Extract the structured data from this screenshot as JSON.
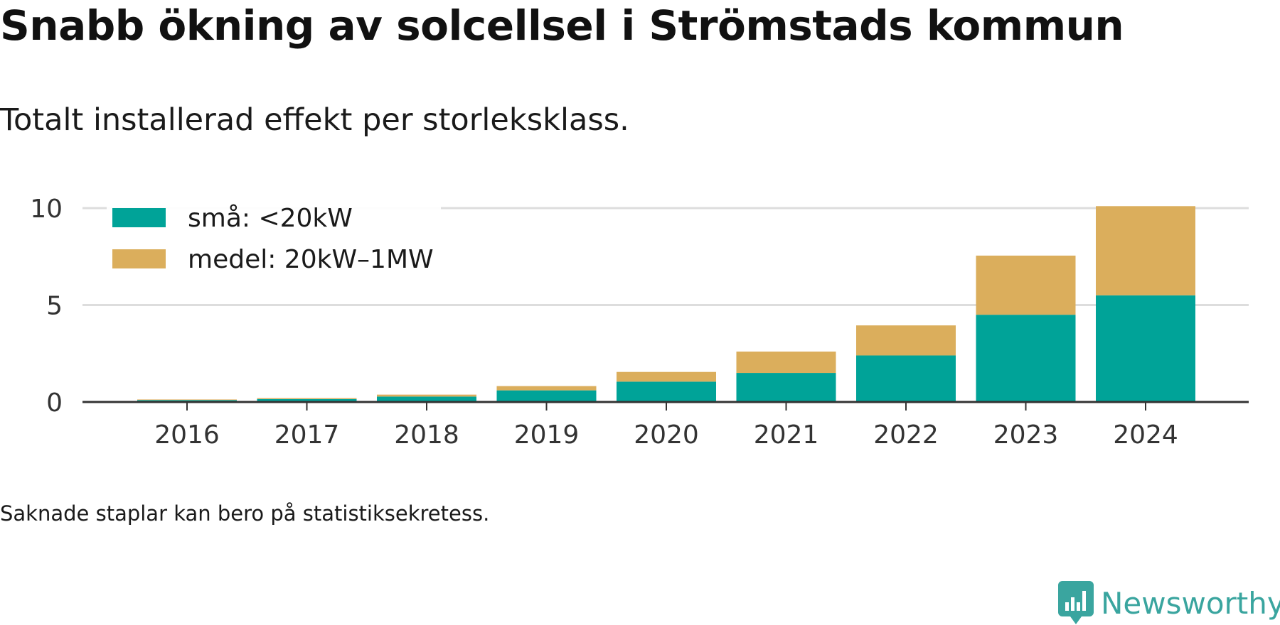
{
  "title": "Snabb ökning av solcellsel i Strömstads kommun",
  "subtitle": "Totalt installerad effekt per storleksklass.",
  "footnote": "Saknade staplar kan bero på statistiksekretess.",
  "brand": {
    "name": "Newsworthy",
    "icon": "newsworthy-logo-icon",
    "color": "#3aa59f"
  },
  "chart_data": {
    "type": "bar",
    "stacked": true,
    "categories": [
      "2016",
      "2017",
      "2018",
      "2019",
      "2020",
      "2021",
      "2022",
      "2023",
      "2024"
    ],
    "series": [
      {
        "name": "små: <20kW",
        "color": "#00a398",
        "values": [
          0.1,
          0.15,
          0.28,
          0.6,
          1.05,
          1.5,
          2.4,
          4.5,
          5.5
        ]
      },
      {
        "name": "medel: 20kW–1MW",
        "color": "#dbae5c",
        "values": [
          0.03,
          0.05,
          0.1,
          0.22,
          0.5,
          1.1,
          1.55,
          3.05,
          4.6
        ]
      }
    ],
    "ylim": [
      0,
      10
    ],
    "yticks": [
      0,
      5,
      10
    ],
    "grid": true,
    "legend_position": "top-left",
    "xlabel": "",
    "ylabel": ""
  }
}
